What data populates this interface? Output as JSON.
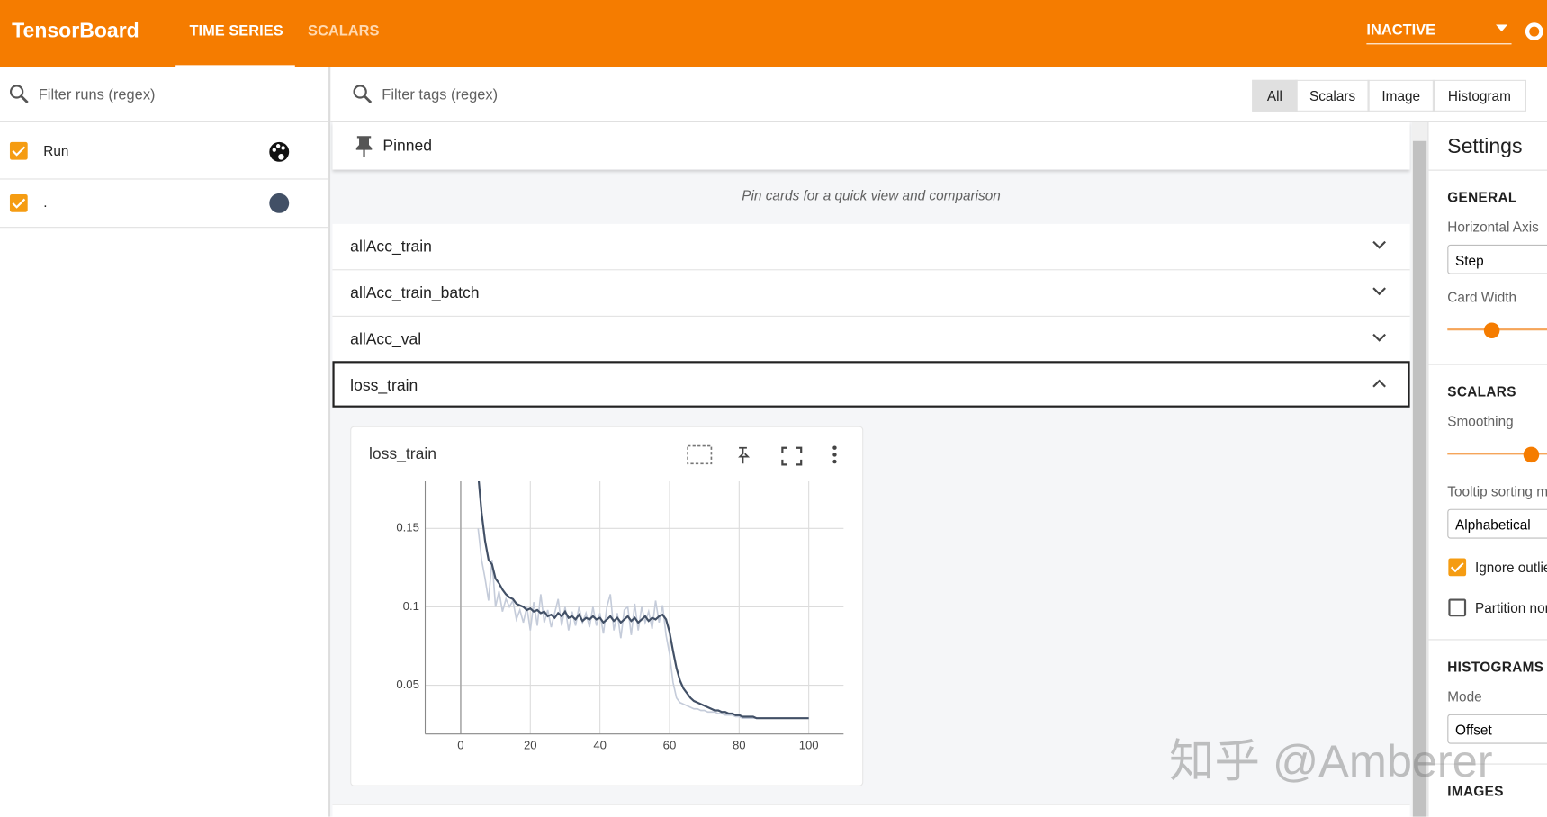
{
  "header": {
    "title": "TensorBoard",
    "tabs": [
      "TIME SERIES",
      "SCALARS"
    ],
    "status": "INACTIVE"
  },
  "runs": {
    "filter_placeholder": "Filter runs (regex)",
    "items": [
      "Run",
      "."
    ]
  },
  "tags": {
    "filter_placeholder": "Filter tags (regex)",
    "type_buttons": [
      "All",
      "Scalars",
      "Image",
      "Histogram"
    ]
  },
  "pinned": {
    "title": "Pinned",
    "empty_message": "Pin cards for a quick view and comparison"
  },
  "groups": [
    "allAcc_train",
    "allAcc_train_batch",
    "allAcc_val",
    "loss_train"
  ],
  "chart_data": {
    "type": "line",
    "title": "loss_train",
    "x": [
      5,
      6,
      7,
      8,
      9,
      10,
      11,
      12,
      13,
      14,
      15,
      16,
      17,
      18,
      19,
      20,
      21,
      22,
      23,
      24,
      25,
      26,
      27,
      28,
      29,
      30,
      31,
      32,
      33,
      34,
      35,
      36,
      37,
      38,
      39,
      40,
      41,
      42,
      43,
      44,
      45,
      46,
      47,
      48,
      49,
      50,
      51,
      52,
      53,
      54,
      55,
      56,
      57,
      58,
      59,
      60,
      61,
      62,
      63,
      64,
      65,
      66,
      67,
      68,
      69,
      70,
      71,
      72,
      73,
      74,
      75,
      76,
      77,
      78,
      79,
      80,
      81,
      82,
      83,
      84,
      85,
      86,
      87,
      88,
      89,
      90,
      91,
      92,
      93,
      94,
      95,
      96,
      97,
      98,
      99,
      100
    ],
    "series": [
      {
        "color": "#c5ccda",
        "values": [
          0.15,
          0.13,
          0.118,
          0.104,
          0.13,
          0.1,
          0.11,
          0.097,
          0.105,
          0.1,
          0.104,
          0.092,
          0.098,
          0.09,
          0.1,
          0.085,
          0.103,
          0.088,
          0.108,
          0.09,
          0.098,
          0.087,
          0.096,
          0.105,
          0.088,
          0.1,
          0.085,
          0.097,
          0.088,
          0.1,
          0.09,
          0.096,
          0.087,
          0.1,
          0.088,
          0.096,
          0.083,
          0.1,
          0.108,
          0.085,
          0.096,
          0.08,
          0.098,
          0.1,
          0.082,
          0.102,
          0.085,
          0.1,
          0.09,
          0.097,
          0.086,
          0.104,
          0.09,
          0.101,
          0.082,
          0.07,
          0.052,
          0.042,
          0.039,
          0.038,
          0.037,
          0.036,
          0.035,
          0.035,
          0.034,
          0.034,
          0.033,
          0.033,
          0.033,
          0.032,
          0.032,
          0.031,
          0.031,
          0.031,
          0.03,
          0.03,
          0.029,
          0.029,
          0.029,
          0.029,
          0.029,
          0.029,
          0.029,
          0.029,
          0.029,
          0.029,
          0.029,
          0.029,
          0.029,
          0.029,
          0.029,
          0.029,
          0.029,
          0.029,
          0.029,
          0.029
        ]
      },
      {
        "color": "#425066",
        "values": [
          0.185,
          0.16,
          0.142,
          0.13,
          0.127,
          0.118,
          0.115,
          0.111,
          0.108,
          0.106,
          0.105,
          0.102,
          0.101,
          0.1,
          0.098,
          0.099,
          0.097,
          0.098,
          0.096,
          0.097,
          0.094,
          0.095,
          0.093,
          0.096,
          0.094,
          0.097,
          0.093,
          0.094,
          0.092,
          0.095,
          0.091,
          0.093,
          0.092,
          0.094,
          0.092,
          0.093,
          0.09,
          0.092,
          0.094,
          0.091,
          0.093,
          0.09,
          0.092,
          0.094,
          0.091,
          0.093,
          0.09,
          0.092,
          0.094,
          0.091,
          0.093,
          0.092,
          0.094,
          0.095,
          0.092,
          0.084,
          0.072,
          0.061,
          0.053,
          0.048,
          0.045,
          0.042,
          0.04,
          0.039,
          0.038,
          0.037,
          0.036,
          0.035,
          0.034,
          0.034,
          0.033,
          0.033,
          0.032,
          0.032,
          0.031,
          0.031,
          0.03,
          0.03,
          0.03,
          0.03,
          0.029,
          0.029,
          0.029,
          0.029,
          0.029,
          0.029,
          0.029,
          0.029,
          0.029,
          0.029,
          0.029,
          0.029,
          0.029,
          0.029,
          0.029,
          0.029
        ]
      }
    ],
    "xlim": [
      -10.2,
      110
    ],
    "xticks": [
      0,
      20,
      40,
      60,
      80,
      100
    ],
    "ylim": [
      0.019,
      0.18
    ],
    "yticks": [
      0.05,
      0.1,
      0.15
    ],
    "grid": true
  },
  "settings": {
    "title": "Settings",
    "general": {
      "heading": "GENERAL",
      "horizontal_axis_label": "Horizontal Axis",
      "horizontal_axis_value": "Step",
      "card_width_label": "Card Width"
    },
    "scalars": {
      "heading": "SCALARS",
      "smoothing_label": "Smoothing",
      "tooltip_sorting_label": "Tooltip sorting m",
      "tooltip_sorting_value": "Alphabetical",
      "ignore_outliers_label": "Ignore outlie",
      "partition_label": "Partition nor"
    },
    "histograms": {
      "heading": "HISTOGRAMS",
      "mode_label": "Mode",
      "mode_value": "Offset"
    },
    "images": {
      "heading": "IMAGES"
    }
  },
  "watermark": "知乎 @Amberer"
}
